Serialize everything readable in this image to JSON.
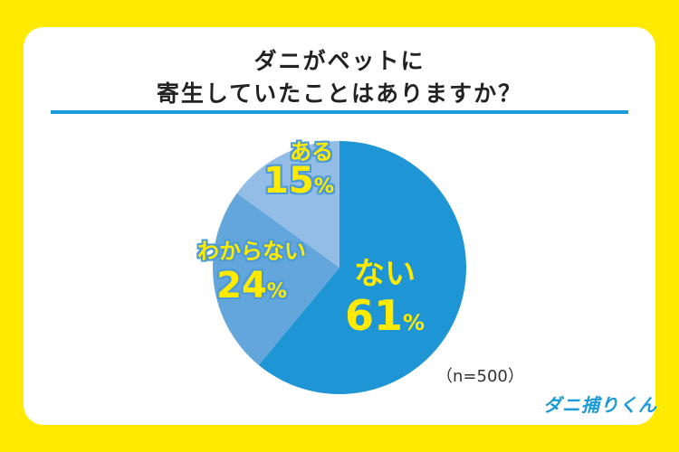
{
  "title_line1": "ダニがペットに",
  "title_line2": "寄生していたことはありますか？",
  "sample_note": "（n=500）",
  "brand": "ダニ捕りくん",
  "colors": {
    "background": "#ffea00",
    "accent": "#1a9ad8",
    "slice_nai": "#1e96d5",
    "slice_wakaranai": "#62a6dc",
    "slice_aru": "#93bde6",
    "label": "#ffea00"
  },
  "labels": {
    "aru": {
      "name": "ある",
      "pct": "15",
      "unit": "%"
    },
    "wakaranai": {
      "name": "わからない",
      "pct": "24",
      "unit": "%"
    },
    "nai": {
      "name": "ない",
      "pct": "61",
      "unit": "%"
    }
  },
  "chart_data": {
    "type": "pie",
    "title": "ダニがペットに寄生していたことはありますか？",
    "categories": [
      "ない",
      "わからない",
      "ある"
    ],
    "values": [
      61,
      24,
      15
    ],
    "unit": "%",
    "sample_size": 500,
    "start_angle": "12 o'clock, clockwise"
  }
}
